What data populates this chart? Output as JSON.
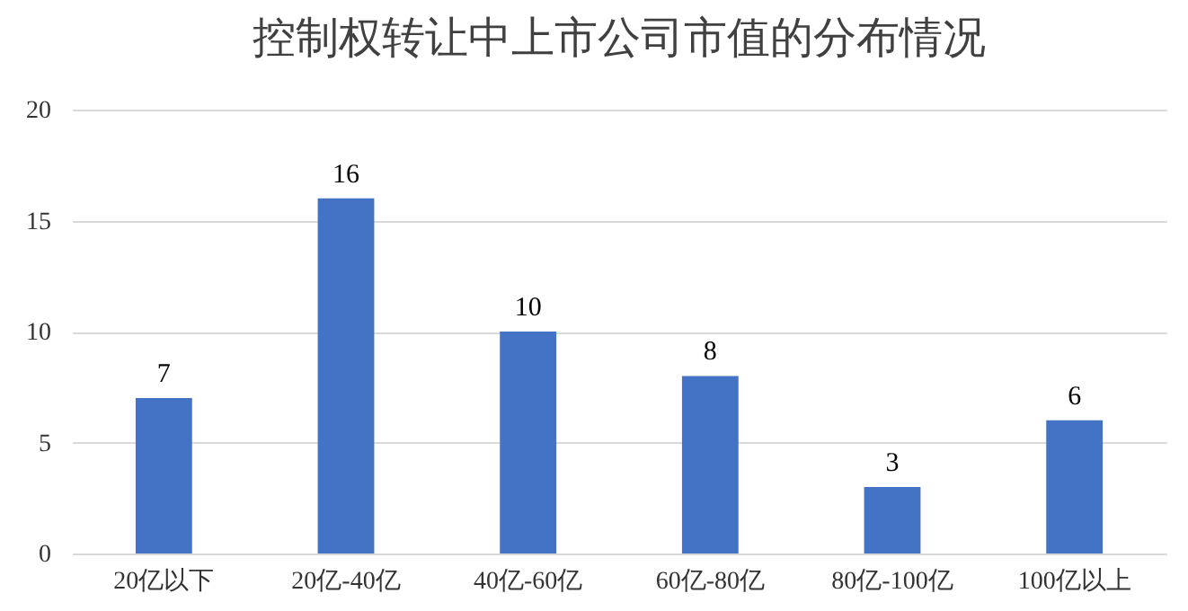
{
  "chart_data": {
    "type": "bar",
    "title": "控制权转让中上市公司市值的分布情况",
    "categories": [
      "20亿以下",
      "20亿-40亿",
      "40亿-60亿",
      "60亿-80亿",
      "80亿-100亿",
      "100亿以上"
    ],
    "values": [
      7,
      16,
      10,
      8,
      3,
      6
    ],
    "color": "#4472c4",
    "ylim": [
      0,
      20
    ],
    "yticks": [
      0,
      5,
      10,
      15,
      20
    ],
    "grid": "y",
    "data_labels": true
  }
}
